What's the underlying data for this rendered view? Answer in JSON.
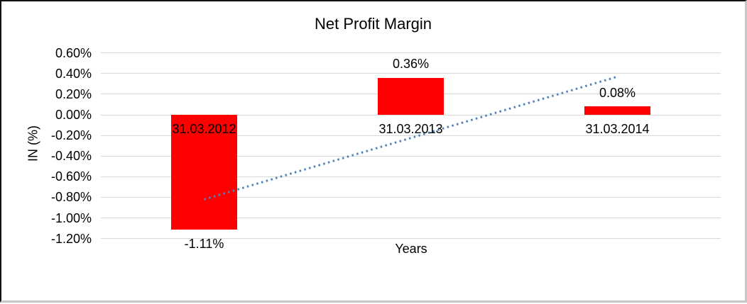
{
  "chart_data": {
    "type": "bar",
    "title": "Net Profit Margin",
    "xlabel": "Years",
    "ylabel": "IN (%)",
    "categories": [
      "31.03.2012",
      "31.03.2013",
      "31.03.2014"
    ],
    "values": [
      -1.11,
      0.36,
      0.08
    ],
    "value_labels": [
      "-1.11%",
      "0.36%",
      "0.08%"
    ],
    "y_ticks": [
      {
        "label": "0.60%",
        "value": 0.6
      },
      {
        "label": "0.40%",
        "value": 0.4
      },
      {
        "label": "0.20%",
        "value": 0.2
      },
      {
        "label": "0.00%",
        "value": 0.0
      },
      {
        "label": "-0.20%",
        "value": -0.2
      },
      {
        "label": "-0.40%",
        "value": -0.4
      },
      {
        "label": "-0.60%",
        "value": -0.6
      },
      {
        "label": "-0.80%",
        "value": -0.8
      },
      {
        "label": "-1.00%",
        "value": -1.0
      },
      {
        "label": "-1.20%",
        "value": -1.2
      }
    ],
    "ylim": [
      -1.2,
      0.6
    ],
    "grid": true,
    "legend": false,
    "bar_color": "#ff0000",
    "gridline_color": "#d9d9d9",
    "text_color": "#000000",
    "trendline": {
      "style": "dotted",
      "color": "#4f81bd",
      "start_value": -0.82,
      "end_value": 0.37
    }
  }
}
